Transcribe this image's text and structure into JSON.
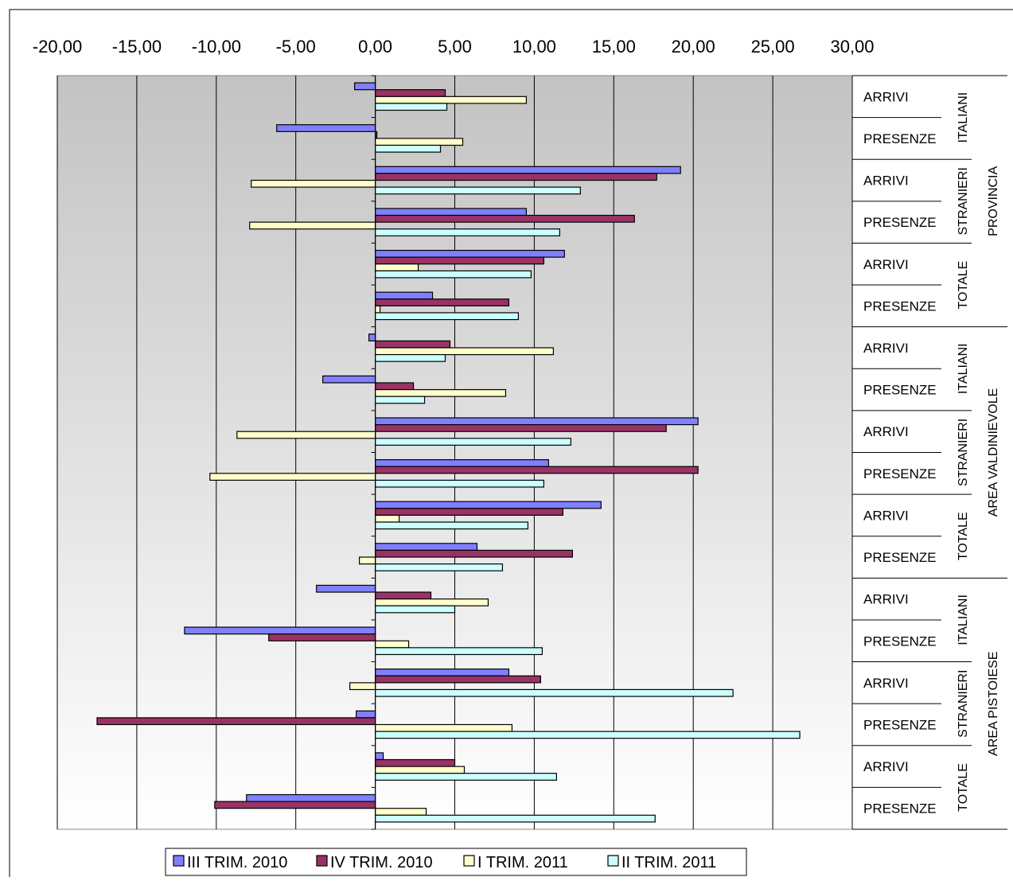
{
  "chart_data": {
    "type": "bar",
    "orientation": "horizontal",
    "xlim": [
      -20,
      30
    ],
    "x_ticks": [
      "-20,00",
      "-15,00",
      "-10,00",
      "-5,00",
      "0,00",
      "5,00",
      "10,00",
      "15,00",
      "20,00",
      "25,00",
      "30,00"
    ],
    "x_tick_values": [
      -20,
      -15,
      -10,
      -5,
      0,
      5,
      10,
      15,
      20,
      25,
      30
    ],
    "x_axis_position": "top",
    "grid": true,
    "legend_position": "bottom",
    "categories": [
      {
        "area": "PROVINCIA",
        "group": "ITALIANI",
        "measure": "ARRIVI"
      },
      {
        "area": "PROVINCIA",
        "group": "ITALIANI",
        "measure": "PRESENZE"
      },
      {
        "area": "PROVINCIA",
        "group": "STRANIERI",
        "measure": "ARRIVI"
      },
      {
        "area": "PROVINCIA",
        "group": "STRANIERI",
        "measure": "PRESENZE"
      },
      {
        "area": "PROVINCIA",
        "group": "TOTALE",
        "measure": "ARRIVI"
      },
      {
        "area": "PROVINCIA",
        "group": "TOTALE",
        "measure": "PRESENZE"
      },
      {
        "area": "AREA VALDINIEVOLE",
        "group": "ITALIANI",
        "measure": "ARRIVI"
      },
      {
        "area": "AREA VALDINIEVOLE",
        "group": "ITALIANI",
        "measure": "PRESENZE"
      },
      {
        "area": "AREA VALDINIEVOLE",
        "group": "STRANIERI",
        "measure": "ARRIVI"
      },
      {
        "area": "AREA VALDINIEVOLE",
        "group": "STRANIERI",
        "measure": "PRESENZE"
      },
      {
        "area": "AREA VALDINIEVOLE",
        "group": "TOTALE",
        "measure": "ARRIVI"
      },
      {
        "area": "AREA VALDINIEVOLE",
        "group": "TOTALE",
        "measure": "PRESENZE"
      },
      {
        "area": "AREA  PISTOIESE",
        "group": "ITALIANI",
        "measure": "ARRIVI"
      },
      {
        "area": "AREA  PISTOIESE",
        "group": "ITALIANI",
        "measure": "PRESENZE"
      },
      {
        "area": "AREA  PISTOIESE",
        "group": "STRANIERI",
        "measure": "ARRIVI"
      },
      {
        "area": "AREA  PISTOIESE",
        "group": "STRANIERI",
        "measure": "PRESENZE"
      },
      {
        "area": "AREA  PISTOIESE",
        "group": "TOTALE",
        "measure": "ARRIVI"
      },
      {
        "area": "AREA  PISTOIESE",
        "group": "TOTALE",
        "measure": "PRESENZE"
      }
    ],
    "series": [
      {
        "name": "III TRIM. 2010",
        "color": "#8080ff",
        "values": [
          -1.3,
          -6.2,
          19.2,
          9.5,
          11.9,
          3.6,
          -0.4,
          -3.3,
          20.3,
          10.9,
          14.2,
          6.4,
          -3.7,
          -12.0,
          8.4,
          -1.2,
          0.5,
          -8.1
        ]
      },
      {
        "name": "IV TRIM. 2010",
        "color": "#993366",
        "values": [
          4.4,
          0.1,
          17.7,
          16.3,
          10.6,
          8.4,
          4.7,
          2.4,
          18.3,
          20.3,
          11.8,
          12.4,
          3.5,
          -6.7,
          10.4,
          -17.5,
          5.0,
          -10.1
        ]
      },
      {
        "name": "I TRIM. 2011",
        "color": "#ffffcc",
        "values": [
          9.5,
          5.5,
          -7.8,
          -7.9,
          2.7,
          0.3,
          11.2,
          8.2,
          -8.7,
          -10.4,
          1.5,
          -1.0,
          7.1,
          2.1,
          -1.6,
          8.6,
          5.6,
          3.2
        ]
      },
      {
        "name": "II TRIM. 2011",
        "color": "#ccffff",
        "values": [
          4.5,
          4.1,
          12.9,
          11.6,
          9.8,
          9.0,
          4.4,
          3.1,
          12.3,
          10.6,
          9.6,
          8.0,
          5.0,
          10.5,
          22.5,
          26.7,
          11.4,
          17.6
        ]
      }
    ]
  }
}
